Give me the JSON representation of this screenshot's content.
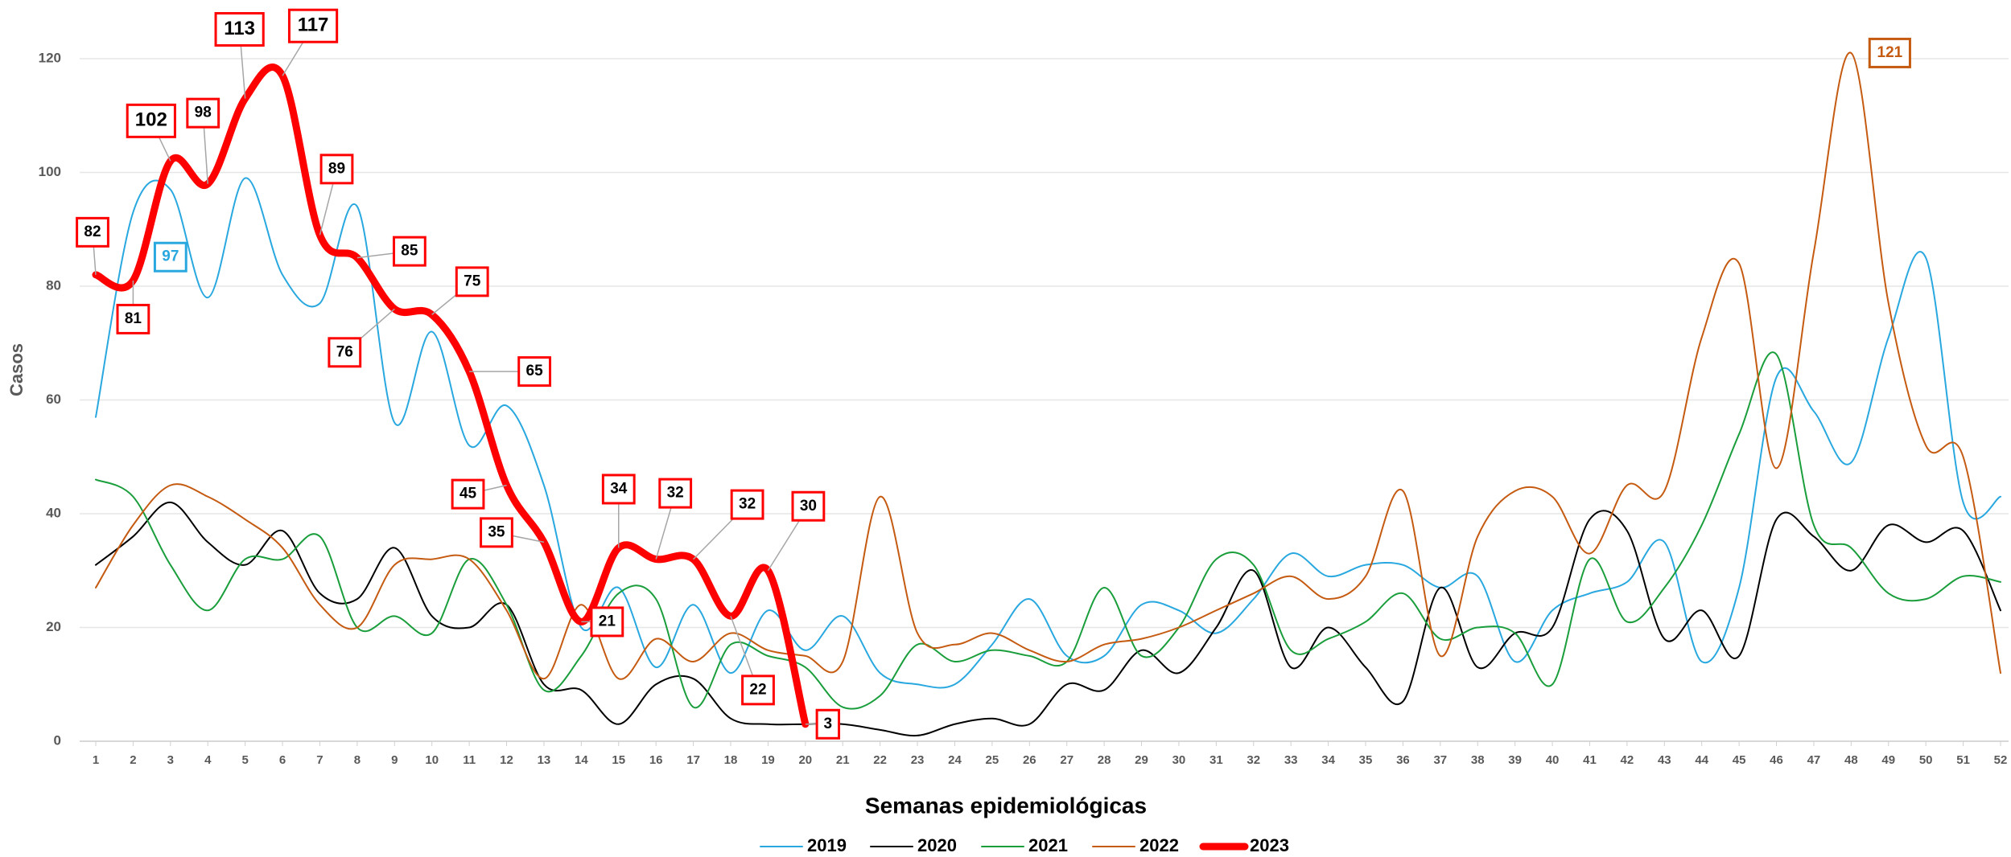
{
  "chart_data": {
    "type": "line",
    "x_label": "Semanas epidemiológicas",
    "y_label": "Casos",
    "x": [
      1,
      2,
      3,
      4,
      5,
      6,
      7,
      8,
      9,
      10,
      11,
      12,
      13,
      14,
      15,
      16,
      17,
      18,
      19,
      20,
      21,
      22,
      23,
      24,
      25,
      26,
      27,
      28,
      29,
      30,
      31,
      32,
      33,
      34,
      35,
      36,
      37,
      38,
      39,
      40,
      41,
      42,
      43,
      44,
      45,
      46,
      47,
      48,
      49,
      50,
      51,
      52
    ],
    "xlim": [
      1,
      52
    ],
    "xticks": [
      1,
      2,
      3,
      4,
      5,
      6,
      7,
      8,
      9,
      10,
      11,
      12,
      13,
      14,
      15,
      16,
      17,
      18,
      19,
      20,
      21,
      22,
      23,
      24,
      25,
      26,
      27,
      28,
      29,
      30,
      31,
      32,
      33,
      34,
      35,
      36,
      37,
      38,
      39,
      40,
      41,
      42,
      43,
      44,
      45,
      46,
      47,
      48,
      49,
      50,
      51,
      52
    ],
    "ylim": [
      0,
      120
    ],
    "yticks": [
      0,
      20,
      40,
      60,
      80,
      100,
      120
    ],
    "grid": true,
    "legend": "bottom",
    "series": [
      {
        "name": "2019",
        "color": "#29a8e0",
        "width": 2,
        "values": [
          57,
          93,
          97,
          78,
          99,
          82,
          77,
          94,
          56,
          72,
          52,
          59,
          45,
          20,
          27,
          13,
          24,
          12,
          23,
          16,
          22,
          12,
          10,
          10,
          17,
          25,
          15,
          15,
          24,
          23,
          19,
          25,
          33,
          29,
          31,
          31,
          27,
          29,
          14,
          23,
          26,
          28,
          35,
          14,
          27,
          64,
          58,
          49,
          71,
          85,
          42,
          43
        ],
        "value_labels": [
          null,
          null,
          "97",
          null,
          null,
          null,
          null,
          null,
          null,
          null,
          null,
          null,
          null,
          null,
          null,
          null,
          null,
          null,
          null,
          null,
          null,
          null,
          null,
          null,
          null,
          null,
          null,
          null,
          null,
          null,
          null,
          null,
          null,
          null,
          null,
          null,
          null,
          null,
          null,
          null,
          null,
          null,
          null,
          null,
          null,
          null,
          null,
          null,
          null,
          null,
          null,
          null
        ]
      },
      {
        "name": "2020",
        "color": "#000000",
        "width": 2,
        "values": [
          31,
          36,
          42,
          35,
          31,
          37,
          26,
          25,
          34,
          22,
          20,
          24,
          10,
          9,
          3,
          10,
          11,
          4,
          3,
          3,
          3,
          2,
          1,
          3,
          4,
          3,
          10,
          9,
          16,
          12,
          20,
          30,
          13,
          20,
          13,
          7,
          27,
          13,
          19,
          20,
          39,
          37,
          18,
          23,
          15,
          39,
          36,
          30,
          38,
          35,
          37,
          23
        ]
      },
      {
        "name": "2021",
        "color": "#1a9e3c",
        "width": 2,
        "values": [
          46,
          43,
          31,
          23,
          32,
          32,
          36,
          20,
          22,
          19,
          32,
          24,
          9,
          15,
          26,
          25,
          6,
          17,
          15,
          13,
          6,
          8,
          17,
          14,
          16,
          15,
          14,
          27,
          15,
          20,
          32,
          31,
          16,
          18,
          21,
          26,
          18,
          20,
          19,
          10,
          32,
          21,
          27,
          38,
          54,
          68,
          38,
          34,
          26,
          25,
          29,
          28
        ]
      },
      {
        "name": "2022",
        "color": "#c55a11",
        "width": 2,
        "values": [
          27,
          38,
          45,
          43,
          39,
          34,
          24,
          20,
          31,
          32,
          32,
          23,
          11,
          24,
          11,
          18,
          14,
          19,
          16,
          15,
          14,
          43,
          19,
          17,
          19,
          16,
          14,
          17,
          18,
          20,
          23,
          26,
          29,
          25,
          29,
          44,
          15,
          36,
          44,
          43,
          33,
          45,
          44,
          71,
          84,
          48,
          86,
          121,
          77,
          52,
          50,
          12
        ],
        "value_labels": [
          null,
          null,
          null,
          null,
          null,
          null,
          null,
          null,
          null,
          null,
          null,
          null,
          null,
          null,
          null,
          null,
          null,
          null,
          null,
          null,
          null,
          null,
          null,
          null,
          null,
          null,
          null,
          null,
          null,
          null,
          null,
          null,
          null,
          null,
          null,
          null,
          null,
          null,
          null,
          null,
          null,
          null,
          null,
          null,
          null,
          null,
          null,
          "121",
          null,
          null,
          null,
          null
        ]
      },
      {
        "name": "2023",
        "color": "#ff0000",
        "width": 9,
        "labeled": true,
        "values": [
          82,
          81,
          102,
          98,
          113,
          117,
          89,
          85,
          76,
          75,
          65,
          45,
          35,
          21,
          34,
          32,
          32,
          22,
          30,
          3,
          null,
          null,
          null,
          null,
          null,
          null,
          null,
          null,
          null,
          null,
          null,
          null,
          null,
          null,
          null,
          null,
          null,
          null,
          null,
          null,
          null,
          null,
          null,
          null,
          null,
          null,
          null,
          null,
          null,
          null,
          null,
          null
        ]
      }
    ]
  }
}
